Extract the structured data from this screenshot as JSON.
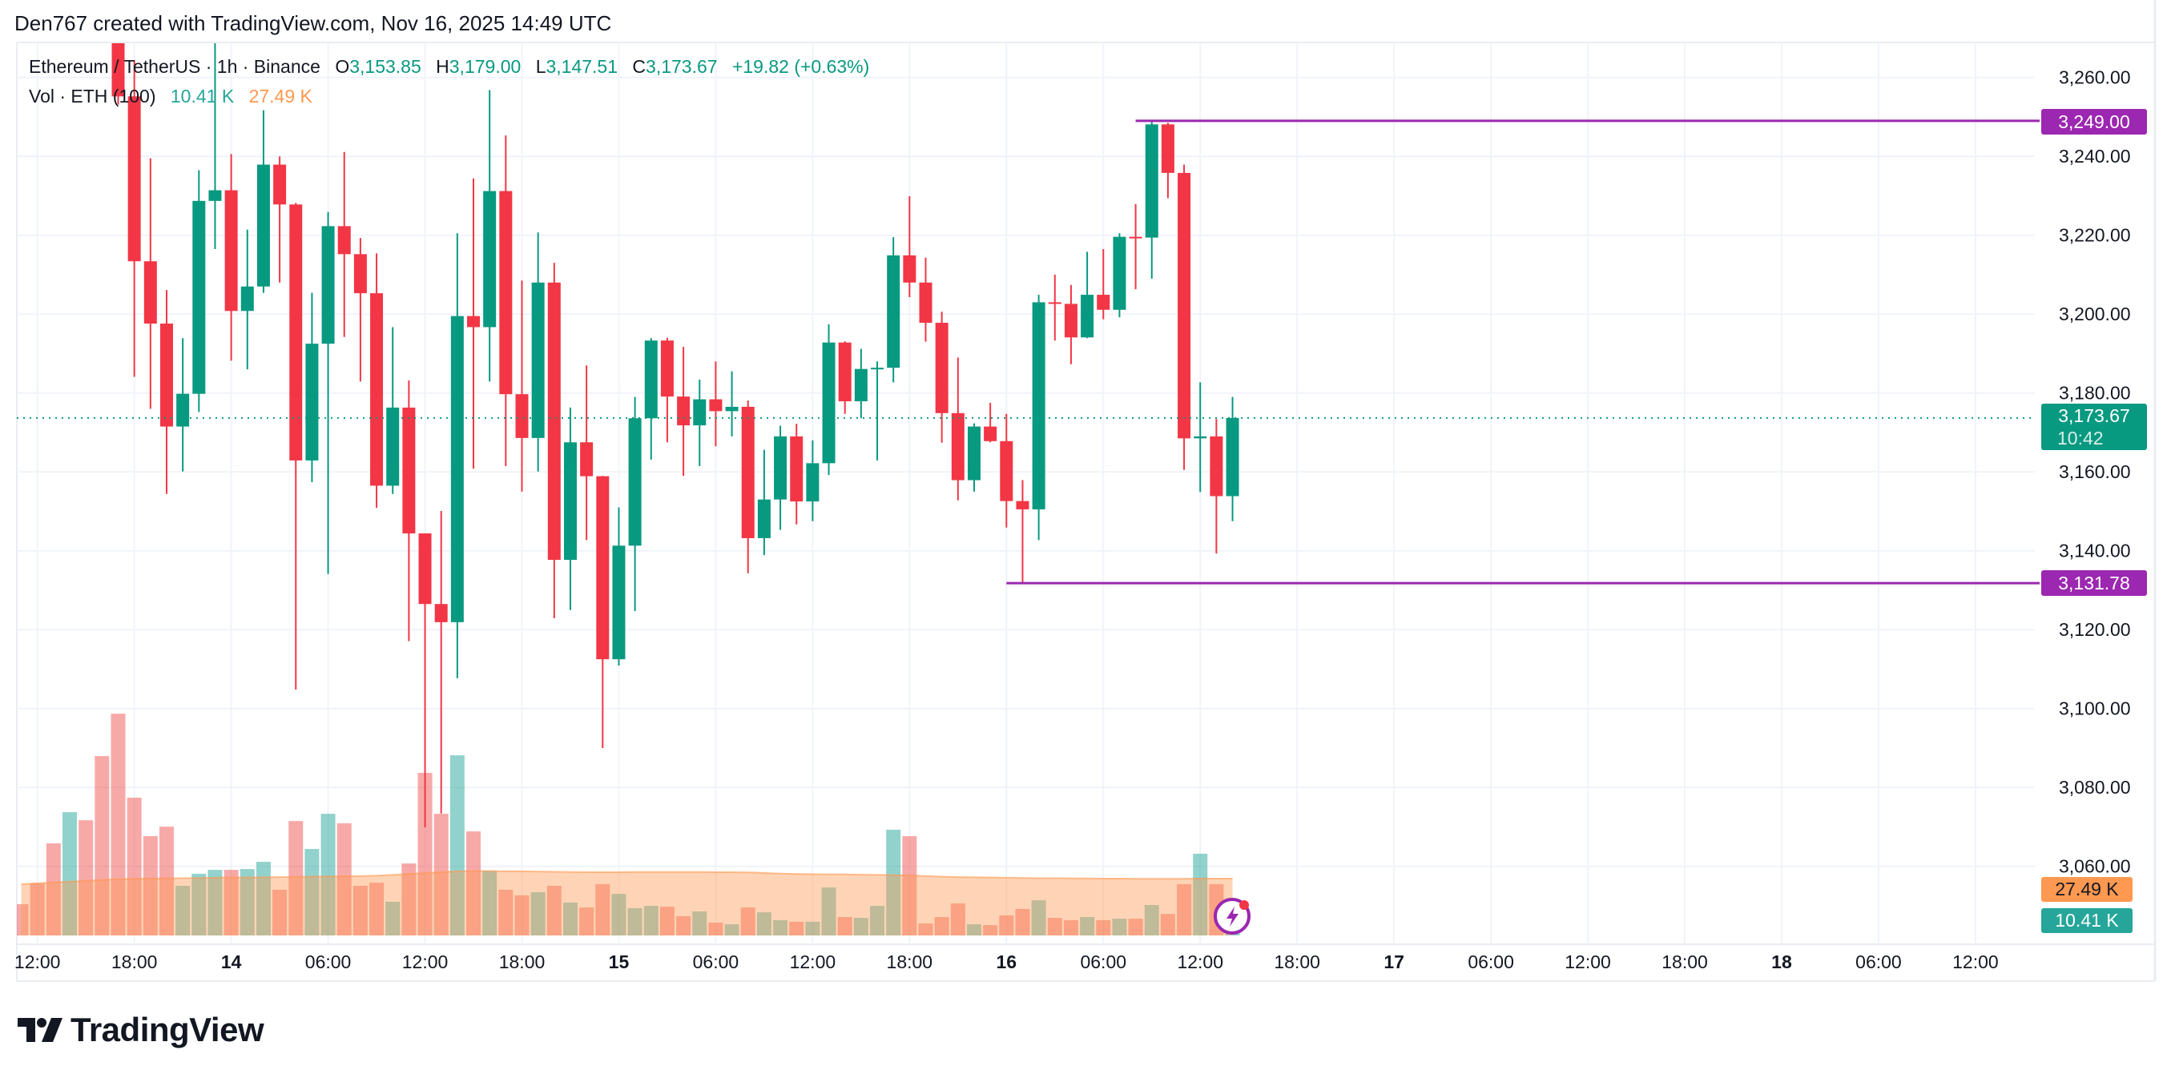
{
  "header": {
    "credit": "Den767 created with TradingView.com, Nov 16, 2025 14:49 UTC"
  },
  "legend": {
    "symbol": "Ethereum / TetherUS · 1h · Binance",
    "o_label": "O",
    "o_value": "3,153.85",
    "h_label": "H",
    "h_value": "3,179.00",
    "l_label": "L",
    "l_value": "3,147.51",
    "c_label": "C",
    "c_value": "3,173.67",
    "change": "+19.82 (+0.63%)",
    "vol_label": "Vol · ETH (100)",
    "vol_value": "10.41 K",
    "vol_ma_value": "27.49 K"
  },
  "price_labels": {
    "high_line": "3,249.00",
    "low_line": "3,131.78",
    "last_price": "3,173.67",
    "countdown": "10:42",
    "vol_ma": "27.49 K",
    "vol": "10.41 K"
  },
  "logo": {
    "text": "TradingView"
  },
  "colors": {
    "up": "#089981",
    "down": "#f23645",
    "vol_up": "rgba(38,166,154,0.5)",
    "vol_down": "rgba(239,83,80,0.5)",
    "vol_ma": "#ff9850",
    "line_purple": "#9c27b0",
    "grid": "#f0f3fa"
  },
  "chart_data": {
    "type": "candlestick",
    "symbol": "Ethereum / TetherUS",
    "interval": "1h",
    "exchange": "Binance",
    "price_axis": {
      "ticks": [
        "3,260.00",
        "3,240.00",
        "3,220.00",
        "3,200.00",
        "3,180.00",
        "3,160.00",
        "3,140.00",
        "3,120.00",
        "3,100.00",
        "3,080.00",
        "3,060.00"
      ],
      "range": [
        3060,
        3260
      ]
    },
    "time_axis": {
      "ticks": [
        {
          "label": "12:00",
          "day": false
        },
        {
          "label": "18:00",
          "day": false
        },
        {
          "label": "14",
          "day": true
        },
        {
          "label": "06:00",
          "day": false
        },
        {
          "label": "12:00",
          "day": false
        },
        {
          "label": "18:00",
          "day": false
        },
        {
          "label": "15",
          "day": true
        },
        {
          "label": "06:00",
          "day": false
        },
        {
          "label": "12:00",
          "day": false
        },
        {
          "label": "18:00",
          "day": false
        },
        {
          "label": "16",
          "day": true
        },
        {
          "label": "06:00",
          "day": false
        },
        {
          "label": "12:00",
          "day": false
        },
        {
          "label": "18:00",
          "day": false
        },
        {
          "label": "17",
          "day": true
        },
        {
          "label": "06:00",
          "day": false
        },
        {
          "label": "12:00",
          "day": false
        },
        {
          "label": "18:00",
          "day": false
        },
        {
          "label": "18",
          "day": true
        },
        {
          "label": "06:00",
          "day": false
        },
        {
          "label": "12:00",
          "day": false
        }
      ]
    },
    "horizontal_lines": [
      {
        "price": 3249.0,
        "from": "2025-11-16 08:00"
      },
      {
        "price": 3131.78,
        "from": "2025-11-16 00:00"
      }
    ],
    "last_price": 3173.67,
    "columns": [
      "time",
      "open",
      "high",
      "low",
      "close",
      "volume_k",
      "direction"
    ],
    "candles": [
      [
        "2025-11-13 11:00",
        null,
        null,
        null,
        null,
        15.1,
        "down"
      ],
      [
        "2025-11-13 12:00",
        null,
        null,
        null,
        null,
        25.2,
        "down"
      ],
      [
        "2025-11-13 13:00",
        null,
        null,
        null,
        null,
        44.5,
        "down"
      ],
      [
        "2025-11-13 14:00",
        null,
        null,
        null,
        null,
        59.6,
        "up"
      ],
      [
        "2025-11-13 15:00",
        null,
        null,
        null,
        null,
        55.7,
        "down"
      ],
      [
        "2025-11-13 16:00",
        null,
        null,
        null,
        null,
        86.7,
        "down"
      ],
      [
        "2025-11-13 17:00",
        null,
        null,
        3253.1,
        3255.2,
        107.2,
        "down"
      ],
      [
        "2025-11-13 18:00",
        3255.2,
        3264.3,
        3184.1,
        3213.4,
        66.6,
        "down"
      ],
      [
        "2025-11-13 19:00",
        3213.4,
        3239.5,
        3176.0,
        3197.6,
        48.0,
        "down"
      ],
      [
        "2025-11-13 20:00",
        3197.6,
        3206.1,
        3154.4,
        3171.5,
        52.6,
        "down"
      ],
      [
        "2025-11-13 21:00",
        3171.5,
        3193.9,
        3160.1,
        3179.8,
        24.0,
        "up"
      ],
      [
        "2025-11-13 22:00",
        3179.8,
        3236.5,
        3175.2,
        3228.7,
        29.8,
        "up"
      ],
      [
        "2025-11-13 23:00",
        3228.7,
        3269.0,
        3216.5,
        3231.4,
        31.7,
        "up"
      ],
      [
        "2025-11-14 00:00",
        3231.4,
        3240.6,
        3188.2,
        3200.8,
        31.7,
        "down"
      ],
      [
        "2025-11-14 01:00",
        3200.8,
        3221.4,
        3186.0,
        3207.0,
        32.1,
        "up"
      ],
      [
        "2025-11-14 02:00",
        3207.0,
        3251.7,
        3205.4,
        3237.9,
        35.6,
        "up"
      ],
      [
        "2025-11-14 03:00",
        3237.9,
        3240.0,
        3208.0,
        3227.8,
        22.1,
        "down"
      ],
      [
        "2025-11-14 04:00",
        3227.8,
        3228.2,
        3104.8,
        3162.9,
        55.3,
        "down"
      ],
      [
        "2025-11-14 05:00",
        3162.9,
        3205.4,
        3157.4,
        3192.5,
        41.8,
        "up"
      ],
      [
        "2025-11-14 06:00",
        3192.5,
        3225.9,
        3134.1,
        3222.3,
        58.8,
        "up"
      ],
      [
        "2025-11-14 07:00",
        3222.3,
        3241.1,
        3194.2,
        3215.2,
        54.2,
        "down"
      ],
      [
        "2025-11-14 08:00",
        3215.2,
        3219.3,
        3182.9,
        3205.3,
        24.0,
        "down"
      ],
      [
        "2025-11-14 09:00",
        3205.3,
        3215.4,
        3150.9,
        3156.5,
        25.5,
        "down"
      ],
      [
        "2025-11-14 10:00",
        3156.5,
        3196.7,
        3154.4,
        3176.3,
        16.3,
        "up"
      ],
      [
        "2025-11-14 11:00",
        3176.3,
        3183.2,
        3117.1,
        3144.4,
        34.8,
        "down"
      ],
      [
        "2025-11-14 12:00",
        3144.4,
        3144.4,
        3069.9,
        3126.5,
        78.6,
        "down"
      ],
      [
        "2025-11-14 13:00",
        3126.5,
        3150.1,
        3073.4,
        3121.9,
        58.8,
        "down"
      ],
      [
        "2025-11-14 14:00",
        3121.9,
        3220.5,
        3107.7,
        3199.5,
        87.1,
        "up"
      ],
      [
        "2025-11-14 15:00",
        3199.5,
        3234.4,
        3160.8,
        3196.7,
        50.3,
        "down"
      ],
      [
        "2025-11-14 16:00",
        3196.7,
        3256.8,
        3182.9,
        3231.2,
        31.3,
        "up"
      ],
      [
        "2025-11-14 17:00",
        3231.2,
        3245.3,
        3161.5,
        3179.7,
        22.1,
        "down"
      ],
      [
        "2025-11-14 18:00",
        3179.7,
        3208.5,
        3155.0,
        3168.6,
        19.4,
        "down"
      ],
      [
        "2025-11-14 19:00",
        3168.6,
        3220.7,
        3160.1,
        3208.0,
        20.9,
        "up"
      ],
      [
        "2025-11-14 20:00",
        3208.0,
        3213.0,
        3122.9,
        3137.7,
        24.0,
        "down"
      ],
      [
        "2025-11-14 21:00",
        3137.7,
        3176.3,
        3125.0,
        3167.5,
        15.9,
        "up"
      ],
      [
        "2025-11-14 22:00",
        3167.5,
        3187.0,
        3142.7,
        3158.9,
        13.5,
        "down"
      ],
      [
        "2025-11-14 23:00",
        3158.9,
        3159.0,
        3090.0,
        3112.5,
        24.8,
        "down"
      ],
      [
        "2025-11-15 00:00",
        3112.5,
        3151.0,
        3110.9,
        3141.3,
        20.1,
        "up"
      ],
      [
        "2025-11-15 01:00",
        3141.3,
        3179.0,
        3124.7,
        3173.6,
        13.2,
        "up"
      ],
      [
        "2025-11-15 02:00",
        3173.6,
        3193.9,
        3163.1,
        3193.3,
        14.3,
        "up"
      ],
      [
        "2025-11-15 03:00",
        3193.3,
        3194.0,
        3167.5,
        3179.1,
        13.9,
        "down"
      ],
      [
        "2025-11-15 04:00",
        3179.1,
        3191.7,
        3159.0,
        3171.8,
        9.3,
        "down"
      ],
      [
        "2025-11-15 05:00",
        3171.8,
        3183.4,
        3161.5,
        3178.4,
        11.6,
        "up"
      ],
      [
        "2025-11-15 06:00",
        3178.4,
        3188.0,
        3166.5,
        3175.4,
        6.2,
        "down"
      ],
      [
        "2025-11-15 07:00",
        3175.4,
        3185.5,
        3169.0,
        3176.5,
        5.4,
        "up"
      ],
      [
        "2025-11-15 08:00",
        3176.5,
        3178.1,
        3134.3,
        3143.2,
        13.5,
        "down"
      ],
      [
        "2025-11-15 09:00",
        3143.2,
        3165.6,
        3138.9,
        3153.0,
        11.2,
        "up"
      ],
      [
        "2025-11-15 10:00",
        3153.0,
        3171.7,
        3145.3,
        3169.0,
        7.4,
        "up"
      ],
      [
        "2025-11-15 11:00",
        3169.0,
        3172.2,
        3146.7,
        3152.5,
        6.6,
        "down"
      ],
      [
        "2025-11-15 12:00",
        3152.5,
        3168.0,
        3147.5,
        3162.2,
        6.6,
        "up"
      ],
      [
        "2025-11-15 13:00",
        3162.2,
        3197.4,
        3159.2,
        3192.8,
        23.2,
        "up"
      ],
      [
        "2025-11-15 14:00",
        3192.8,
        3193.1,
        3174.7,
        3177.9,
        8.9,
        "down"
      ],
      [
        "2025-11-15 15:00",
        3177.9,
        3191.2,
        3173.6,
        3186.1,
        8.5,
        "up"
      ],
      [
        "2025-11-15 16:00",
        3186.1,
        3188.0,
        3162.9,
        3186.4,
        14.3,
        "up"
      ],
      [
        "2025-11-15 17:00",
        3186.4,
        3219.5,
        3182.7,
        3214.9,
        51.1,
        "up"
      ],
      [
        "2025-11-15 18:00",
        3214.9,
        3229.9,
        3204.3,
        3208.0,
        48.0,
        "down"
      ],
      [
        "2025-11-15 19:00",
        3208.0,
        3214.3,
        3193.0,
        3197.8,
        5.8,
        "down"
      ],
      [
        "2025-11-15 20:00",
        3197.8,
        3200.6,
        3167.4,
        3174.9,
        8.9,
        "down"
      ],
      [
        "2025-11-15 21:00",
        3174.9,
        3189.0,
        3152.8,
        3157.9,
        15.5,
        "down"
      ],
      [
        "2025-11-15 22:00",
        3157.9,
        3172.3,
        3155.0,
        3171.5,
        5.4,
        "up"
      ],
      [
        "2025-11-15 23:00",
        3171.5,
        3177.5,
        3167.5,
        3167.8,
        5.0,
        "down"
      ],
      [
        "2025-11-16 00:00",
        3167.8,
        3174.7,
        3145.9,
        3152.6,
        9.7,
        "down"
      ],
      [
        "2025-11-16 01:00",
        3152.6,
        3157.9,
        3131.78,
        3150.5,
        12.8,
        "down"
      ],
      [
        "2025-11-16 02:00",
        3150.5,
        3204.9,
        3142.7,
        3203.0,
        17.0,
        "up"
      ],
      [
        "2025-11-16 03:00",
        3203.0,
        3210.0,
        3193.3,
        3202.6,
        8.5,
        "down"
      ],
      [
        "2025-11-16 04:00",
        3202.6,
        3207.4,
        3187.3,
        3194.1,
        7.4,
        "down"
      ],
      [
        "2025-11-16 05:00",
        3194.1,
        3215.8,
        3193.9,
        3204.9,
        8.9,
        "up"
      ],
      [
        "2025-11-16 06:00",
        3204.9,
        3216.5,
        3198.7,
        3201.1,
        7.4,
        "down"
      ],
      [
        "2025-11-16 07:00",
        3201.1,
        3220.5,
        3199.2,
        3219.6,
        8.1,
        "up"
      ],
      [
        "2025-11-16 08:00",
        3219.6,
        3227.9,
        3206.3,
        3219.4,
        8.1,
        "down"
      ],
      [
        "2025-11-16 09:00",
        3219.4,
        3249.0,
        3209.0,
        3248.1,
        14.7,
        "up"
      ],
      [
        "2025-11-16 10:00",
        3248.1,
        3248.5,
        3229.4,
        3235.8,
        10.4,
        "down"
      ],
      [
        "2025-11-16 11:00",
        3235.8,
        3237.9,
        3160.5,
        3168.5,
        24.8,
        "down"
      ],
      [
        "2025-11-16 12:00",
        3168.5,
        3182.7,
        3154.9,
        3169.0,
        39.5,
        "up"
      ],
      [
        "2025-11-16 13:00",
        3169.0,
        3173.4,
        3139.3,
        3153.85,
        24.8,
        "down"
      ],
      [
        "2025-11-16 14:00",
        3153.85,
        3179.0,
        3147.51,
        3173.67,
        10.41,
        "up"
      ]
    ],
    "volume_ma_k": [
      24.8,
      25.2,
      25.6,
      26.0,
      26.4,
      26.8,
      27.2,
      27.4,
      27.5,
      27.6,
      27.7,
      27.8,
      27.9,
      28.0,
      28.0,
      28.1,
      28.2,
      28.3,
      28.4,
      28.5,
      28.6,
      28.7,
      28.9,
      29.3,
      29.7,
      30.2,
      30.6,
      31.0,
      31.1,
      31.1,
      31.0,
      31.0,
      30.9,
      30.8,
      30.7,
      30.6,
      30.6,
      30.6,
      30.7,
      30.7,
      30.7,
      30.7,
      30.7,
      30.6,
      30.6,
      30.5,
      30.2,
      29.9,
      29.7,
      29.6,
      29.5,
      29.5,
      29.4,
      29.3,
      29.2,
      29.0,
      28.7,
      28.4,
      28.2,
      28.1,
      28.0,
      27.9,
      27.8,
      27.7,
      27.7,
      27.6,
      27.6,
      27.5,
      27.5,
      27.4,
      27.4,
      27.4,
      27.4,
      27.5,
      27.5,
      27.49
    ]
  }
}
